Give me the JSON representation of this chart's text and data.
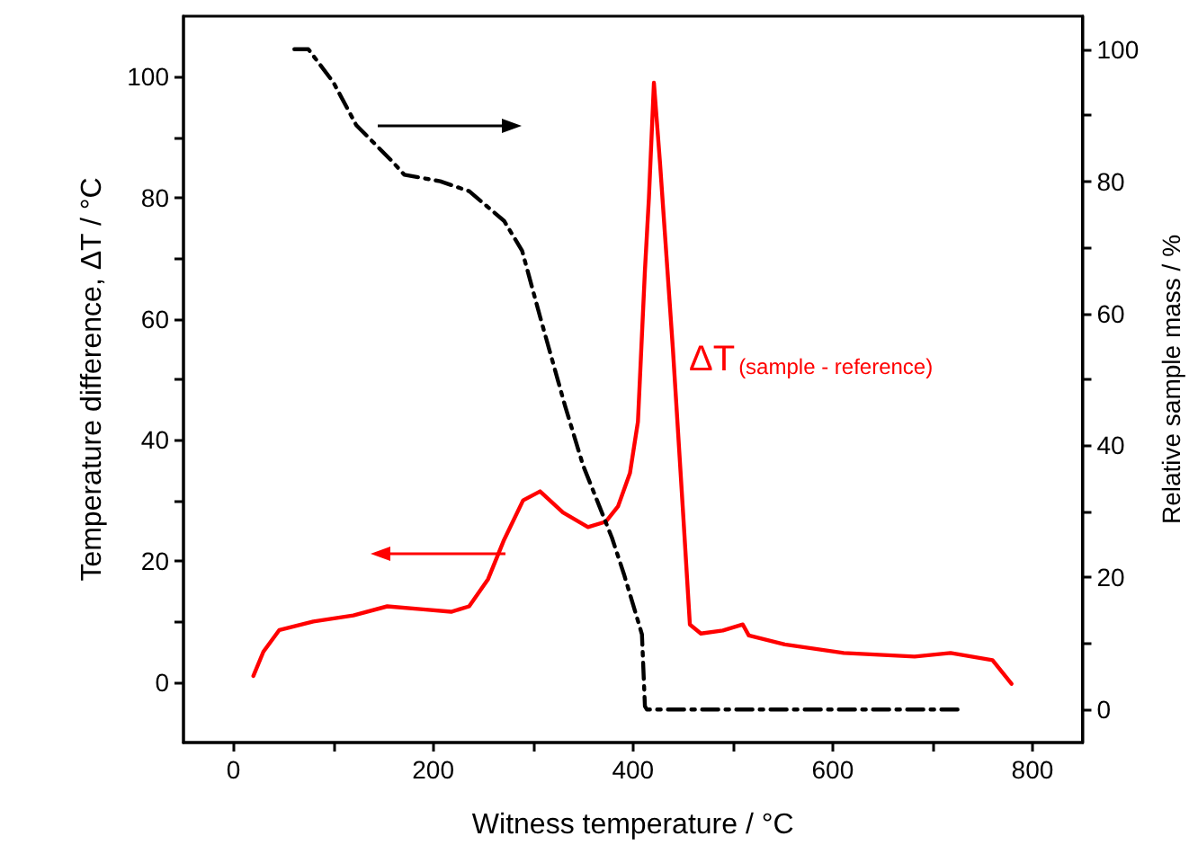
{
  "chart_data": {
    "type": "line",
    "xlabel": "Witness temperature / °C",
    "ylabel": "Temperature difference, ΔT / °C",
    "y2label": "Relative sample mass / %",
    "xlim": [
      -50,
      850
    ],
    "xticks": [
      0,
      {
        "value": 100,
        "label": null
      },
      200,
      {
        "value": 300,
        "label": null
      },
      400,
      {
        "value": 500,
        "label": null
      },
      600,
      {
        "value": 700,
        "label": null
      },
      800
    ],
    "ylim": [
      -10,
      110
    ],
    "yticks": [
      0,
      {
        "value": 10,
        "label": null
      },
      20,
      {
        "value": 30,
        "label": null
      },
      40,
      {
        "value": 50,
        "label": null
      },
      60,
      {
        "value": 70,
        "label": null
      },
      80,
      {
        "value": 90,
        "label": null
      },
      100
    ],
    "y2lim": [
      -5,
      105
    ],
    "y2ticks": [
      0,
      {
        "value": 10,
        "label": null
      },
      20,
      {
        "value": 30,
        "label": null
      },
      40,
      {
        "value": 50,
        "label": null
      },
      60,
      {
        "value": 70,
        "label": null
      },
      80,
      {
        "value": 90,
        "label": null
      },
      100
    ],
    "grid": false,
    "marker": "none",
    "annotations": [
      "ΔT$_{(sample - reference)}$"
    ],
    "series": [
      {
        "color": "#ff0000",
        "line_style": "solid",
        "x": [
          20,
          30,
          46,
          80,
          120,
          154,
          190,
          218,
          236,
          255,
          271,
          290,
          307,
          330,
          355,
          373,
          385,
          397,
          405,
          412,
          416,
          421,
          427,
          440,
          450,
          457,
          468,
          490,
          510,
          516,
          552,
          611,
          682,
          718,
          760,
          779
        ],
        "values": [
          1,
          5,
          8.6,
          10,
          11,
          12.5,
          12,
          11.6,
          12.5,
          17,
          23.5,
          30,
          31.5,
          28,
          25.6,
          26.5,
          29,
          34.5,
          43,
          68,
          80,
          99,
          86,
          55,
          28.5,
          9.5,
          8,
          8.5,
          9.5,
          7.7,
          6.2,
          4.8,
          4.2,
          4.8,
          3.6,
          -0.3
        ]
      },
      {
        "color": "#000000",
        "line_style": "dashed",
        "axis": "y2",
        "x": [
          61,
          75,
          100,
          123,
          159,
          171,
          207,
          236,
          271,
          289,
          307,
          332,
          350,
          379,
          391,
          409,
          412,
          414,
          730
        ],
        "values": [
          100,
          100,
          95,
          88.5,
          83,
          81,
          80,
          78.5,
          74,
          69.5,
          59.5,
          46,
          37,
          26,
          20.5,
          11.4,
          0.5,
          0,
          0
        ]
      }
    ]
  }
}
